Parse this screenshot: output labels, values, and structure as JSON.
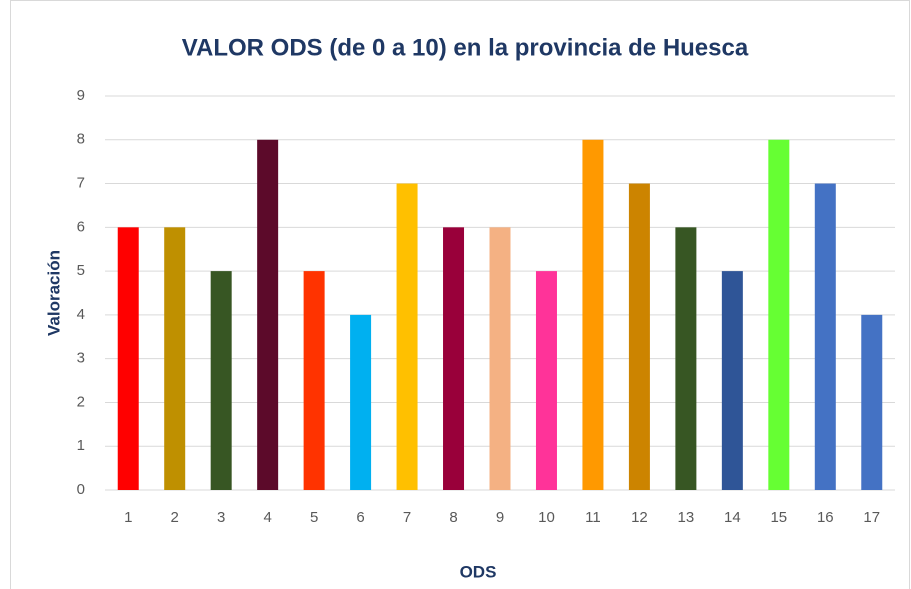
{
  "chart_data": {
    "type": "bar",
    "title": "VALOR ODS (de 0 a 10) en la provincia de Huesca",
    "xlabel": "ODS",
    "ylabel": "Valoración",
    "categories": [
      "1",
      "2",
      "3",
      "4",
      "5",
      "6",
      "7",
      "8",
      "9",
      "10",
      "11",
      "12",
      "13",
      "14",
      "15",
      "16",
      "17"
    ],
    "values": [
      6,
      6,
      5,
      8,
      5,
      4,
      7,
      6,
      6,
      5,
      8,
      7,
      6,
      5,
      8,
      7,
      4
    ],
    "colors": [
      "#ff0000",
      "#bf9000",
      "#375623",
      "#5c0a2a",
      "#ff3300",
      "#00b0f0",
      "#ffc000",
      "#99003a",
      "#f4b183",
      "#ff3399",
      "#ff9900",
      "#cc8400",
      "#375623",
      "#2f5597",
      "#66ff33",
      "#4472c4",
      "#4472c4"
    ],
    "ylim": [
      0,
      9
    ],
    "yticks": [
      0,
      1,
      2,
      3,
      4,
      5,
      6,
      7,
      8,
      9
    ],
    "grid": true
  }
}
